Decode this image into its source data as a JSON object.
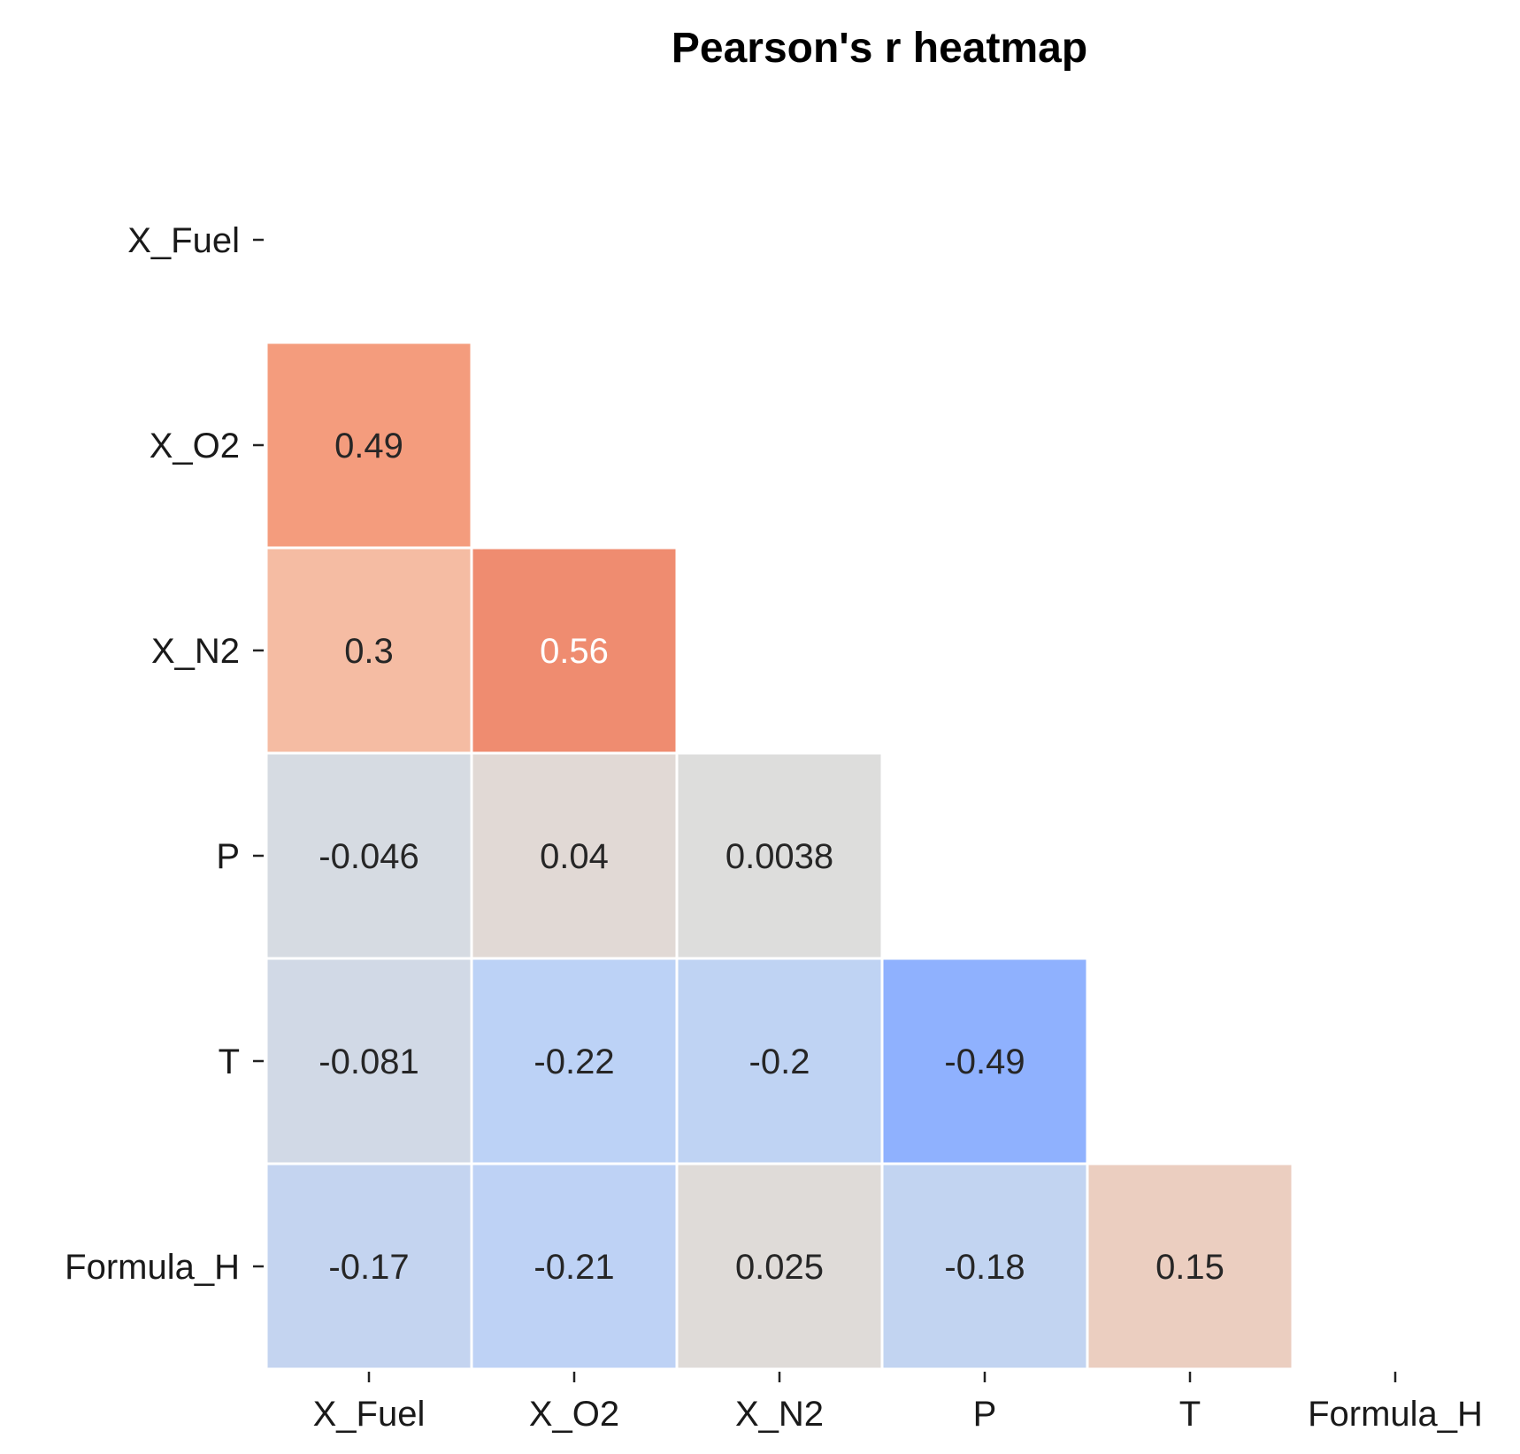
{
  "chart_data": {
    "type": "heatmap",
    "title": "Pearson's r heatmap",
    "variables": [
      "X_Fuel",
      "X_O2",
      "X_N2",
      "P",
      "T",
      "Formula_H"
    ],
    "mask": "upper-triangle-including-diagonal",
    "color_scale": {
      "name": "coolwarm",
      "vmin": -1,
      "vmax": 1,
      "low_color": "#3b4cc0",
      "mid_color": "#dddddd",
      "high_color": "#b40426"
    },
    "cells": [
      {
        "row": "X_O2",
        "col": "X_Fuel",
        "value": 0.49,
        "label": "0.49"
      },
      {
        "row": "X_N2",
        "col": "X_Fuel",
        "value": 0.3,
        "label": "0.3"
      },
      {
        "row": "X_N2",
        "col": "X_O2",
        "value": 0.56,
        "label": "0.56"
      },
      {
        "row": "P",
        "col": "X_Fuel",
        "value": -0.046,
        "label": "-0.046"
      },
      {
        "row": "P",
        "col": "X_O2",
        "value": 0.04,
        "label": "0.04"
      },
      {
        "row": "P",
        "col": "X_N2",
        "value": 0.0038,
        "label": "0.0038"
      },
      {
        "row": "T",
        "col": "X_Fuel",
        "value": -0.081,
        "label": "-0.081"
      },
      {
        "row": "T",
        "col": "X_O2",
        "value": -0.22,
        "label": "-0.22"
      },
      {
        "row": "T",
        "col": "X_N2",
        "value": -0.2,
        "label": "-0.2"
      },
      {
        "row": "T",
        "col": "P",
        "value": -0.49,
        "label": "-0.49"
      },
      {
        "row": "Formula_H",
        "col": "X_Fuel",
        "value": -0.17,
        "label": "-0.17"
      },
      {
        "row": "Formula_H",
        "col": "X_O2",
        "value": -0.21,
        "label": "-0.21"
      },
      {
        "row": "Formula_H",
        "col": "X_N2",
        "value": 0.025,
        "label": "0.025"
      },
      {
        "row": "Formula_H",
        "col": "P",
        "value": -0.18,
        "label": "-0.18"
      },
      {
        "row": "Formula_H",
        "col": "T",
        "value": 0.15,
        "label": "0.15"
      }
    ]
  }
}
